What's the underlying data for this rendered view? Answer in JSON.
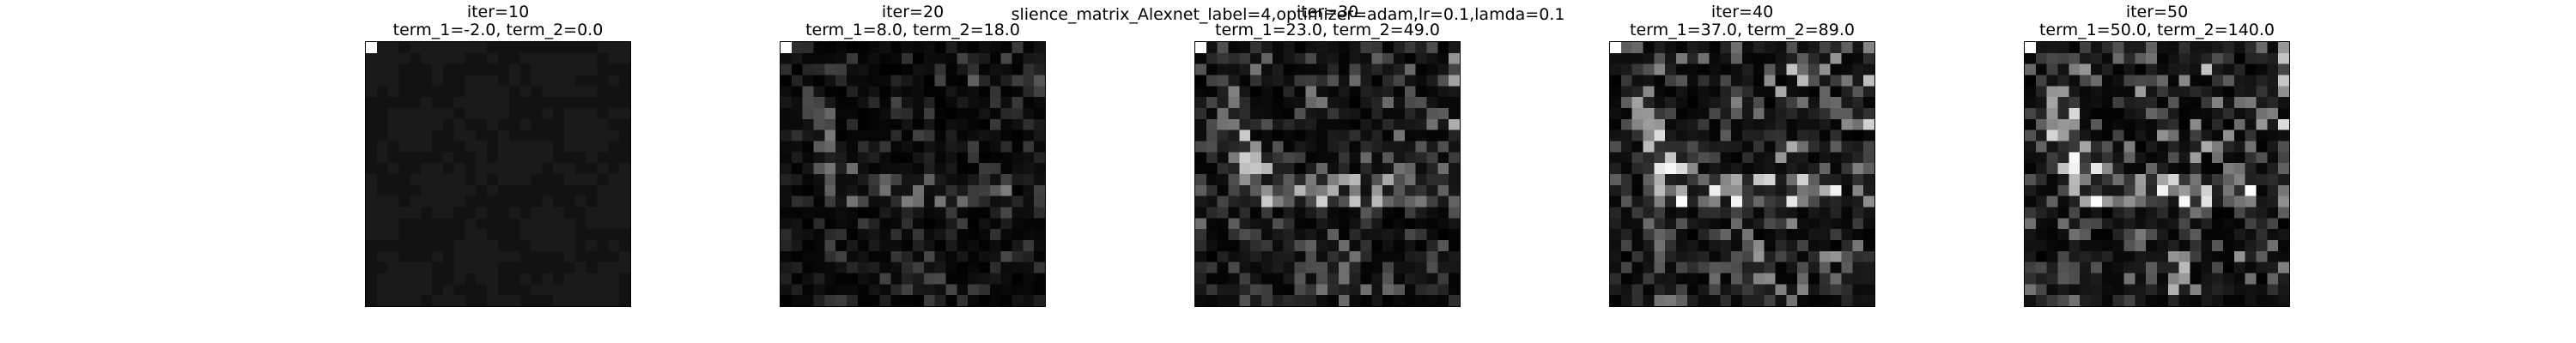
{
  "figure": {
    "suptitle": "slience_matrix_Alexnet_label=4,optimizer=adam,lr=0.1,lamda=0.1"
  },
  "chart_data": [
    {
      "type": "heatmap",
      "title_line1": "iter=10",
      "title_line2": "term_1=-2.0, term_2=0.0",
      "grid": [
        24,
        24
      ],
      "colormap": "gray",
      "seed": 11,
      "pattern": "uniform"
    },
    {
      "type": "heatmap",
      "title_line1": "iter=20",
      "title_line2": "term_1=8.0, term_2=18.0",
      "grid": [
        24,
        24
      ],
      "colormap": "gray",
      "seed": 22,
      "pattern": "structured",
      "gain": 0.45
    },
    {
      "type": "heatmap",
      "title_line1": "iter=30",
      "title_line2": "term_1=23.0, term_2=49.0",
      "grid": [
        24,
        24
      ],
      "colormap": "gray",
      "seed": 33,
      "pattern": "structured",
      "gain": 0.75
    },
    {
      "type": "heatmap",
      "title_line1": "iter=40",
      "title_line2": "term_1=37.0, term_2=89.0",
      "grid": [
        24,
        24
      ],
      "colormap": "gray",
      "seed": 44,
      "pattern": "structured",
      "gain": 0.9
    },
    {
      "type": "heatmap",
      "title_line1": "iter=50",
      "title_line2": "term_1=50.0, term_2=140.0",
      "grid": [
        24,
        24
      ],
      "colormap": "gray",
      "seed": 55,
      "pattern": "structured",
      "gain": 0.95
    }
  ]
}
